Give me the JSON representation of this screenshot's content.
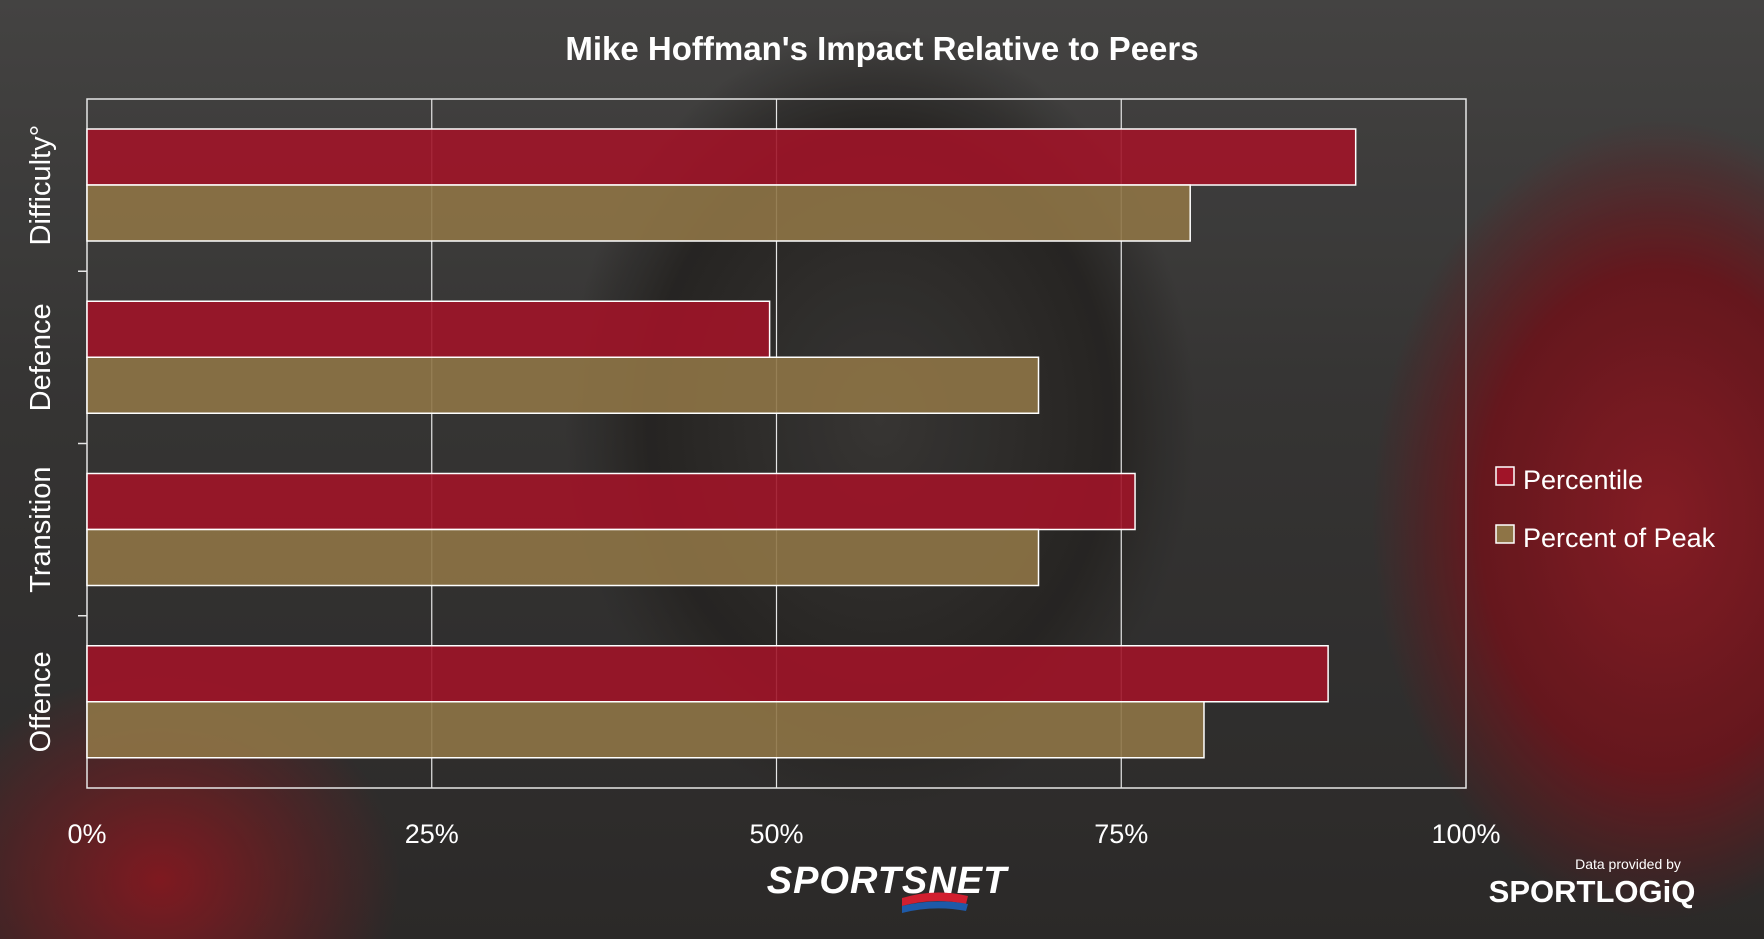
{
  "chart_data": {
    "type": "bar",
    "orientation": "horizontal",
    "title": "Mike Hoffman's Impact Relative to Peers",
    "categories": [
      "Difficulty°",
      "Defence",
      "Transition",
      "Offence"
    ],
    "series": [
      {
        "name": "Percentile",
        "color": "#a01428",
        "values": [
          0.92,
          0.495,
          0.76,
          0.9
        ]
      },
      {
        "name": "Percent of Peak",
        "color": "#8e7446",
        "values": [
          0.8,
          0.69,
          0.69,
          0.81
        ]
      }
    ],
    "xlim": [
      0,
      1
    ],
    "xticks": [
      "0%",
      "25%",
      "50%",
      "75%",
      "100%"
    ],
    "grid": true,
    "legend_position": "right"
  },
  "branding": {
    "broadcaster": "SPORTSNET",
    "provider_caption": "Data provided by",
    "provider": "SPORTLOGiQ"
  }
}
